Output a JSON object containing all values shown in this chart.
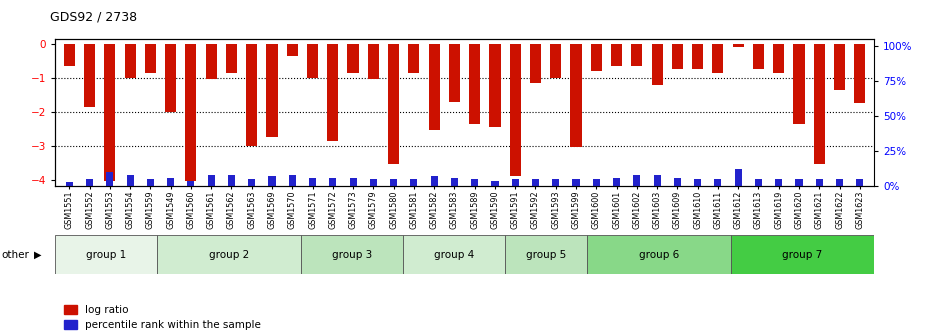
{
  "title": "GDS92 / 2738",
  "samples": [
    "GSM1551",
    "GSM1552",
    "GSM1553",
    "GSM1554",
    "GSM1559",
    "GSM1549",
    "GSM1560",
    "GSM1561",
    "GSM1562",
    "GSM1563",
    "GSM1569",
    "GSM1570",
    "GSM1571",
    "GSM1572",
    "GSM1573",
    "GSM1579",
    "GSM1580",
    "GSM1581",
    "GSM1582",
    "GSM1583",
    "GSM1589",
    "GSM1590",
    "GSM1591",
    "GSM1592",
    "GSM1593",
    "GSM1599",
    "GSM1600",
    "GSM1601",
    "GSM1602",
    "GSM1603",
    "GSM1609",
    "GSM1610",
    "GSM1611",
    "GSM1612",
    "GSM1613",
    "GSM1619",
    "GSM1620",
    "GSM1621",
    "GSM1622",
    "GSM1623"
  ],
  "log_ratio": [
    -0.65,
    -1.85,
    -4.05,
    -1.0,
    -0.85,
    -2.0,
    -4.05,
    -1.05,
    -0.85,
    -3.0,
    -2.75,
    -0.35,
    -1.0,
    -2.85,
    -0.85,
    -1.05,
    -3.55,
    -0.85,
    -2.55,
    -1.7,
    -2.35,
    -2.45,
    -3.9,
    -1.15,
    -1.0,
    -3.05,
    -0.8,
    -0.65,
    -0.65,
    -1.2,
    -0.75,
    -0.75,
    -0.85,
    -0.1,
    -0.75,
    -0.85,
    -2.35,
    -3.55,
    -1.35,
    -1.75
  ],
  "percentile": [
    3,
    5,
    10,
    8,
    5,
    6,
    4,
    8,
    8,
    5,
    7,
    8,
    6,
    6,
    6,
    5,
    5,
    5,
    7,
    6,
    5,
    4,
    5,
    5,
    5,
    5,
    5,
    6,
    8,
    8,
    6,
    5,
    5,
    12,
    5,
    5,
    5,
    5,
    5,
    5
  ],
  "groups": [
    {
      "name": "group 1",
      "start": 0,
      "end": 5
    },
    {
      "name": "group 2",
      "start": 5,
      "end": 12
    },
    {
      "name": "group 3",
      "start": 12,
      "end": 17
    },
    {
      "name": "group 4",
      "start": 17,
      "end": 22
    },
    {
      "name": "group 5",
      "start": 22,
      "end": 26
    },
    {
      "name": "group 6",
      "start": 26,
      "end": 33
    },
    {
      "name": "group 7",
      "start": 33,
      "end": 40
    }
  ],
  "group_colors": [
    "#e8f4e8",
    "#d0ecd0",
    "#bce4bc",
    "#d0ecd0",
    "#bce4bc",
    "#88d888",
    "#44cc44"
  ],
  "bar_color": "#cc1100",
  "percentile_color": "#2222cc",
  "ylim_left": [
    -4.2,
    0.15
  ],
  "ylim_right": [
    0,
    105
  ],
  "yticks_left": [
    0,
    -1,
    -2,
    -3,
    -4
  ],
  "yticks_right": [
    0,
    25,
    50,
    75,
    100
  ],
  "bar_width": 0.55,
  "pct_bar_width": 0.35
}
